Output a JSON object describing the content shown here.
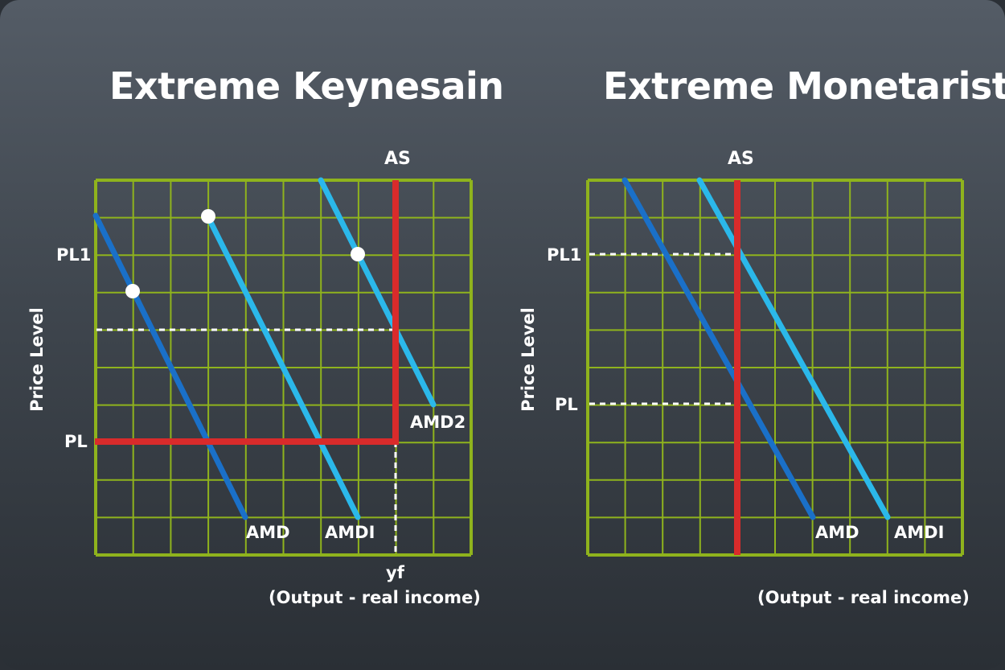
{
  "colors": {
    "grid": "#8fb31d",
    "as_line": "#d92b2b",
    "amd_line": "#1a70c8",
    "amdi_line": "#2bb8ea",
    "dashed": "#ffffff",
    "text": "#ffffff"
  },
  "keynesian": {
    "title": "Extreme Keynesain",
    "ylabel": "Price Level",
    "xlabel": "(Output - real income)",
    "as_label": "AS",
    "pl_label": "PL",
    "pl1_label": "PL1",
    "yf_label": "yf",
    "amd_label": "AMD",
    "amdi_label": "AMDI",
    "amd2_label": "AMD2"
  },
  "monetarist": {
    "title": "Extreme Monetarist",
    "ylabel": "Price Level",
    "xlabel": "(Output - real income)",
    "as_label": "AS",
    "pl_label": "PL",
    "pl1_label": "PL1",
    "amd_label": "AMD",
    "amdi_label": "AMDI"
  }
}
